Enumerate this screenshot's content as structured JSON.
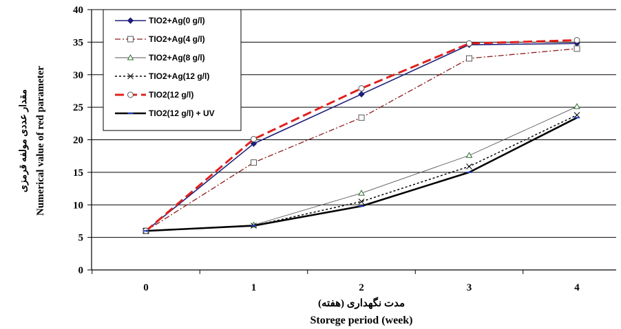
{
  "chart_data": {
    "type": "line",
    "x": [
      0,
      1,
      2,
      3,
      4
    ],
    "xlabel_fa": "مدت نگهداری (هفته)",
    "xlabel_en": "Storege period (week)",
    "ylabel_fa": "مقدار عددی مولفه قرمزی",
    "ylabel_en": "Numerical value of red parameter",
    "ylim": [
      0,
      40
    ],
    "yticks": [
      0,
      5,
      10,
      15,
      20,
      25,
      30,
      35,
      40
    ],
    "xticks": [
      0,
      1,
      2,
      3,
      4
    ],
    "grid": "horizontal",
    "legend_position": "top-left",
    "series": [
      {
        "name": "TIO2+Ag(0 g/l)",
        "values": [
          6,
          19.4,
          27,
          34.6,
          34.8
        ],
        "color": "#1f1f7a",
        "dash": "",
        "width": 1.6,
        "marker": "diamond"
      },
      {
        "name": "TIO2+Ag(4 g/l)",
        "values": [
          6,
          16.5,
          23.4,
          32.5,
          34
        ],
        "color": "#8b1a1a",
        "dash": "8,3,2,3",
        "width": 1.3,
        "marker": "square"
      },
      {
        "name": "TIO2+Ag(8 g/l)",
        "values": [
          6,
          6.9,
          11.8,
          17.6,
          25.1
        ],
        "color": "#555555",
        "dash": "",
        "width": 0.9,
        "marker": "triangle"
      },
      {
        "name": "TIO2+Ag(12 g/l)",
        "values": [
          6,
          6.8,
          10.5,
          15.9,
          23.8
        ],
        "color": "#000000",
        "dash": "3,3",
        "width": 1.5,
        "marker": "x"
      },
      {
        "name": "TIO2(12 g/l)",
        "values": [
          6,
          20.1,
          27.9,
          34.8,
          35.3
        ],
        "color": "#e0201d",
        "dash": "13,6",
        "width": 3,
        "marker": "circle"
      },
      {
        "name": "TIO2(12 g/l) + UV",
        "values": [
          6,
          6.8,
          9.8,
          15,
          23.4
        ],
        "color": "#000000",
        "dash": "",
        "width": 2.6,
        "marker": "dash"
      }
    ]
  }
}
